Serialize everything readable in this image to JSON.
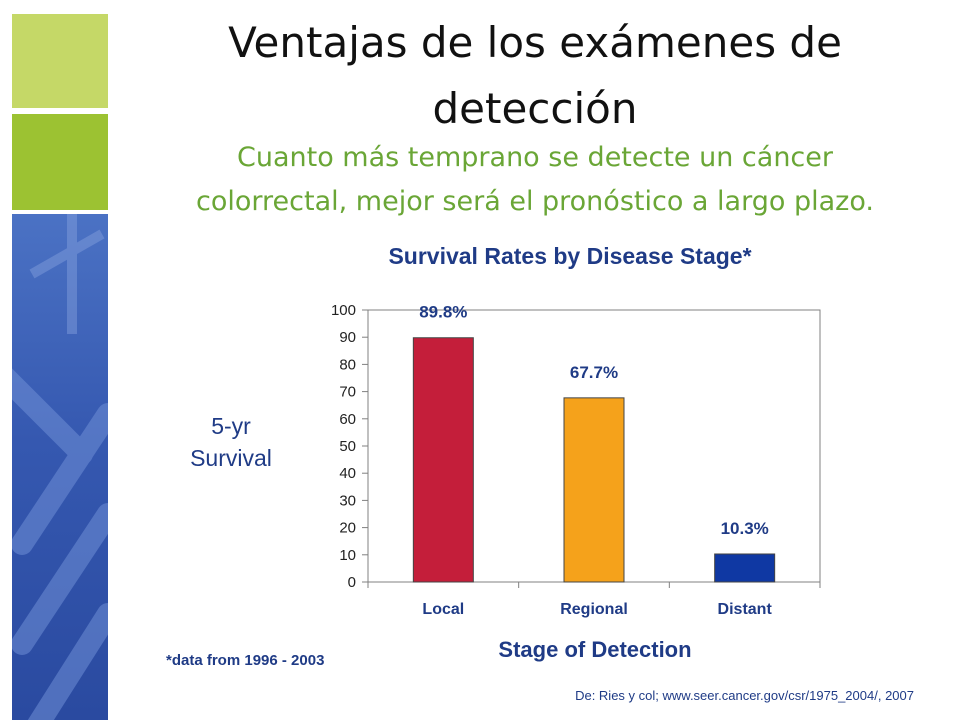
{
  "slide": {
    "title_line1": "Ventajas de los exámenes de",
    "title_line2": "detección",
    "subtitle_line1": "Cuanto más temprano se detecte un cáncer",
    "subtitle_line2": "colorrectal, mejor será el pronóstico a largo plazo.",
    "footnote": "*data from 1996 - 2003",
    "source": "De: Ries y col; www.seer.cancer.gov/csr/1975_2004/, 2007"
  },
  "colors": {
    "accent_light_green": "#c5d867",
    "accent_green": "#9cc232",
    "accent_blue": "#3558b0",
    "text_blue": "#1f3b86",
    "subtitle_green": "#6aa636"
  },
  "chart_data": {
    "type": "bar",
    "title": "Survival Rates by Disease Stage*",
    "ylabel_line1": "5-yr",
    "ylabel_line2": "Survival",
    "xlabel": "Stage of Detection",
    "categories": [
      "Local",
      "Regional",
      "Distant"
    ],
    "values": [
      89.8,
      67.7,
      10.3
    ],
    "data_labels": [
      "89.8%",
      "67.7%",
      "10.3%"
    ],
    "bar_colors": [
      "#c41e3a",
      "#f5a21b",
      "#0f38a3"
    ],
    "ylim": [
      0,
      100
    ],
    "yticks": [
      0,
      10,
      20,
      30,
      40,
      50,
      60,
      70,
      80,
      90,
      100
    ],
    "grid": false,
    "legend": "none"
  }
}
